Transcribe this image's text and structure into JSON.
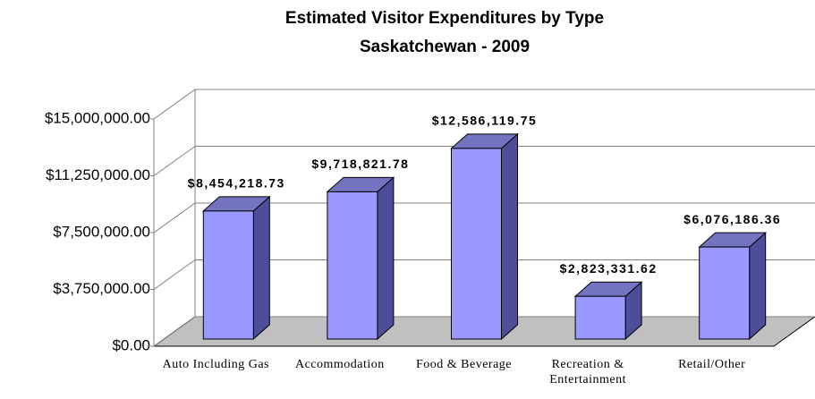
{
  "chart_data": {
    "type": "bar3d",
    "title": "Estimated Visitor Expenditures by Type",
    "subtitle": "Saskatchewan - 2009",
    "categories": [
      "Auto Including Gas",
      "Accommodation",
      "Food & Beverage",
      "Recreation & Entertainment",
      "Retail/Other"
    ],
    "values": [
      8454218.73,
      9718821.78,
      12586119.75,
      2823331.62,
      6076186.36
    ],
    "value_labels": [
      "$8,454,218.73",
      "$9,718,821.78",
      "$12,586,119.75",
      "$2,823,331.62",
      "$6,076,186.36"
    ],
    "color": "#9999ff",
    "ylim": [
      0,
      15000000
    ],
    "yticks": [
      {
        "value": 0,
        "label": "$0.00"
      },
      {
        "value": 3750000,
        "label": "$3,750,000.00"
      },
      {
        "value": 7500000,
        "label": "$7,500,000.00"
      },
      {
        "value": 11250000,
        "label": "$11,250,000.00"
      },
      {
        "value": 15000000,
        "label": "$15,000,000.00"
      }
    ],
    "grid": true
  }
}
